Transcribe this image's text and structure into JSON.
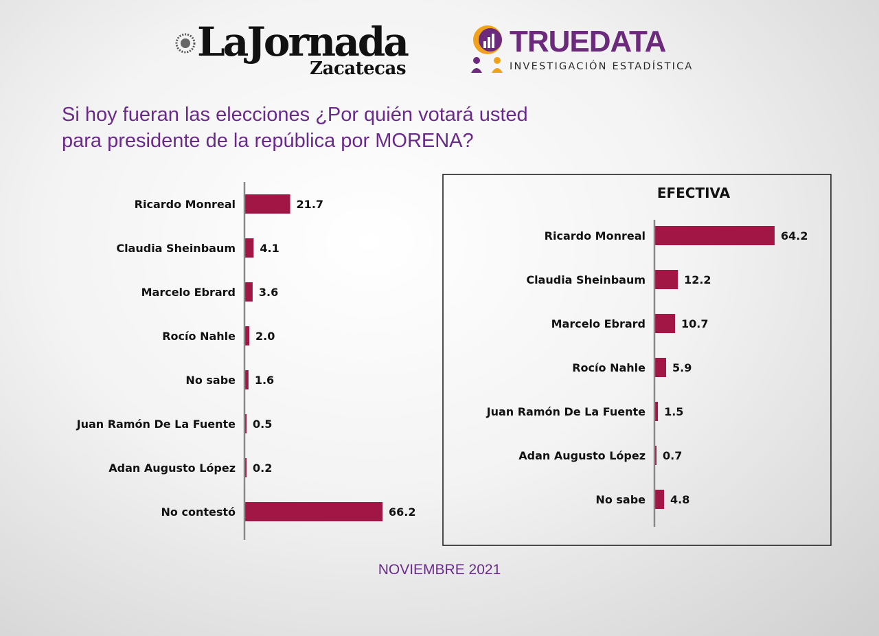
{
  "header": {
    "brand_main": "LaJornada",
    "brand_sub": "Zacatecas",
    "partner_title": "TRUEDATA",
    "partner_subtitle": "INVESTIGACIÓN ESTADÍSTICA"
  },
  "question": {
    "line1": "Si hoy fueran las elecciones ¿Por quién votará usted",
    "line2": "para presidente de la república por MORENA?"
  },
  "footer": {
    "date": "NOVIEMBRE 2021"
  },
  "colors": {
    "bar": "#a11645",
    "title": "#6a2a8a",
    "axis": "#888888",
    "partner": "#6b2a7c",
    "partner_accent": "#f0a21c"
  },
  "chart_data": [
    {
      "type": "bar",
      "orientation": "horizontal",
      "title": "",
      "categories": [
        "Ricardo Monreal",
        "Claudia Sheinbaum",
        "Marcelo Ebrard",
        "Rocío Nahle",
        "No sabe",
        "Juan Ramón De La Fuente",
        "Adan Augusto López",
        "No contestó"
      ],
      "values": [
        21.7,
        4.1,
        3.6,
        2.0,
        1.6,
        0.5,
        0.2,
        66.2
      ],
      "value_labels": [
        "21.7",
        "4.1",
        "3.6",
        "2.0",
        "1.6",
        "0.5",
        "0.2",
        "66.2"
      ],
      "xlim": [
        0,
        66.2
      ],
      "grid": false
    },
    {
      "type": "bar",
      "orientation": "horizontal",
      "title": "EFECTIVA",
      "categories": [
        "Ricardo Monreal",
        "Claudia Sheinbaum",
        "Marcelo Ebrard",
        "Rocío Nahle",
        "Juan Ramón De La Fuente",
        "Adan Augusto López",
        "No sabe"
      ],
      "values": [
        64.2,
        12.2,
        10.7,
        5.9,
        1.5,
        0.7,
        4.8
      ],
      "value_labels": [
        "64.2",
        "12.2",
        "10.7",
        "5.9",
        "1.5",
        "0.7",
        "4.8"
      ],
      "xlim": [
        0,
        64.2
      ],
      "grid": false
    }
  ]
}
